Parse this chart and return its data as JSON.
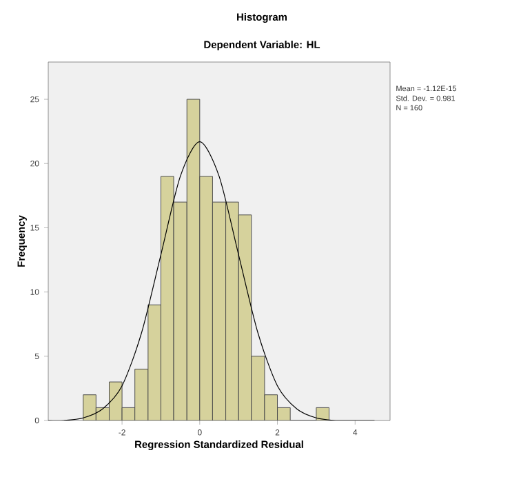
{
  "chart_data": {
    "type": "histogram",
    "title": "Histogram",
    "subtitle": "Dependent Variable: HL",
    "xlabel": "Regression Standardized Residual",
    "ylabel": "Frequency",
    "annotations": [
      "Mean = -1.12E-15",
      "Std. Dev. = 0.981",
      "N = 160"
    ],
    "series": [
      {
        "type": "histogram",
        "color": "#d6d29c",
        "bins": [
          -3,
          -2.67,
          -2.33,
          -2,
          -1.67,
          -1.33,
          -1,
          -0.67,
          -0.33,
          0,
          0.33,
          0.67,
          1,
          1.33,
          1.67,
          2,
          2.33,
          3,
          3.33
        ],
        "values": [
          2,
          1,
          3,
          1,
          4,
          9,
          19,
          17,
          25,
          19,
          17,
          17,
          16,
          5,
          2,
          1,
          0,
          1
        ]
      },
      {
        "type": "line",
        "color": "#000000",
        "x": [
          -3.9,
          -3.5,
          -3,
          -2.5,
          -2,
          -1.5,
          -1,
          -0.5,
          0,
          0.5,
          1,
          1.5,
          2,
          2.5,
          3,
          3.5,
          4,
          4.5
        ],
        "values": [
          0,
          0,
          0.2,
          0.9,
          2.7,
          6.8,
          12.9,
          19,
          21.7,
          19,
          12.9,
          6.8,
          2.7,
          0.9,
          0.2,
          0,
          0,
          0
        ]
      }
    ],
    "xlim": [
      -3.9,
      4.9
    ],
    "ylim": [
      0,
      27.9
    ],
    "xticks": [
      -2,
      0,
      2,
      4
    ],
    "yticks": [
      0,
      5,
      10,
      15,
      20,
      25
    ],
    "grid": false
  }
}
